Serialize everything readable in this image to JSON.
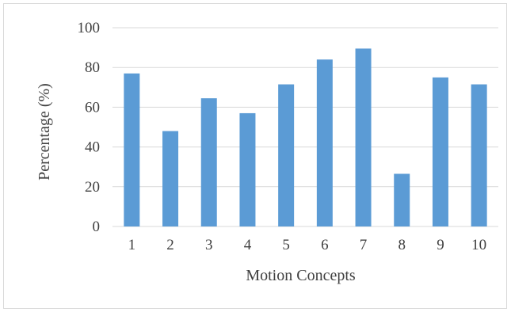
{
  "chart_data": {
    "type": "bar",
    "title": "",
    "xlabel": "Motion Concepts",
    "ylabel": "Percentage (%)",
    "categories": [
      "1",
      "2",
      "3",
      "4",
      "5",
      "6",
      "7",
      "8",
      "9",
      "10"
    ],
    "values": [
      77,
      48,
      64.5,
      57,
      71.5,
      84,
      89.5,
      26.5,
      75,
      71.5
    ],
    "ylim": [
      0,
      100
    ],
    "yticks": [
      0,
      20,
      40,
      60,
      80,
      100
    ],
    "grid": true,
    "legend": "none",
    "bar_color": "#5b9bd5",
    "grid_color": "#d9d9d9"
  }
}
